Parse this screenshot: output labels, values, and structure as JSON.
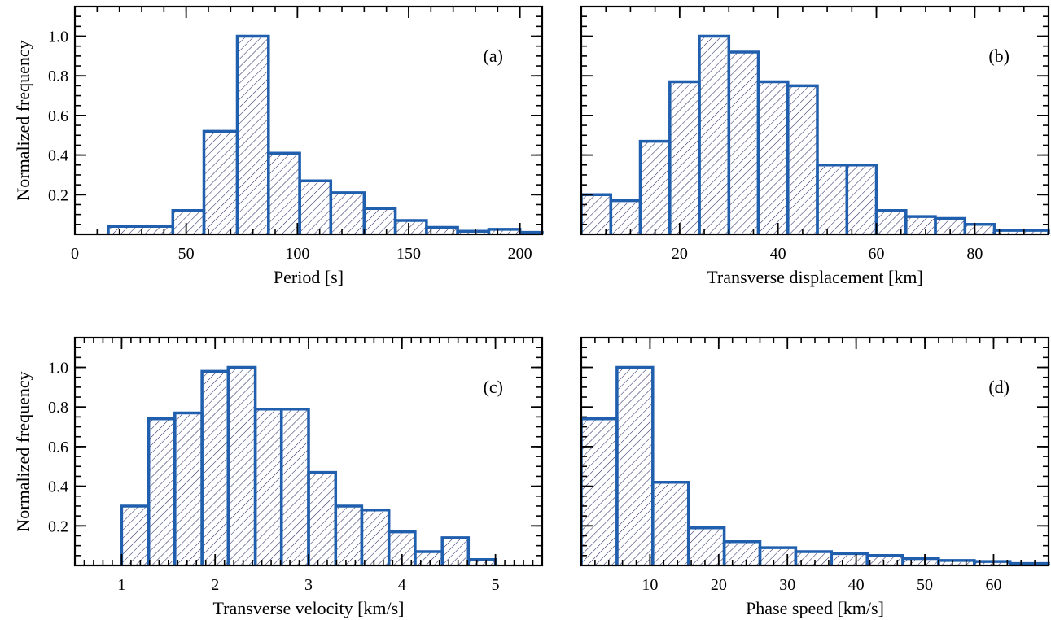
{
  "style": {
    "outline_color": "#1f5fad",
    "hatch_color": "#2a2a66",
    "axis_color": "#000000"
  },
  "chart_data": [
    {
      "type": "bar",
      "panel_label": "(a)",
      "xlabel": "Period [s]",
      "ylabel": "Normalized frequency",
      "xlim": [
        0,
        210
      ],
      "ylim": [
        0,
        1.15
      ],
      "xticks": [
        0,
        50,
        100,
        150,
        200
      ],
      "x_minor_step": 10,
      "yticks": [
        0.2,
        0.4,
        0.6,
        0.8,
        1.0
      ],
      "y_minor_step": 0.05,
      "bin_edges": [
        15,
        44,
        58,
        73,
        87,
        101,
        115,
        130,
        144,
        158,
        172,
        186,
        200,
        210
      ],
      "values": [
        0.04,
        0.12,
        0.52,
        1.0,
        0.41,
        0.27,
        0.21,
        0.13,
        0.07,
        0.035,
        0.015,
        0.025,
        0.01
      ]
    },
    {
      "type": "bar",
      "panel_label": "(b)",
      "xlabel": "Transverse displacement [km]",
      "ylabel": "",
      "xlim": [
        0,
        95
      ],
      "ylim": [
        0,
        1.15
      ],
      "xticks": [
        20,
        40,
        60,
        80
      ],
      "x_minor_step": 5,
      "yticks": [
        0.2,
        0.4,
        0.6,
        0.8,
        1.0
      ],
      "y_minor_step": 0.05,
      "bin_edges": [
        0,
        6,
        12,
        18,
        24,
        30,
        36,
        42,
        48,
        54,
        60,
        66,
        72,
        78,
        84,
        95
      ],
      "values": [
        0.2,
        0.17,
        0.47,
        0.77,
        1.0,
        0.92,
        0.77,
        0.75,
        0.35,
        0.35,
        0.12,
        0.09,
        0.08,
        0.05,
        0.02
      ]
    },
    {
      "type": "bar",
      "panel_label": "(c)",
      "xlabel": "Transverse velocity [km/s]",
      "ylabel": "Normalized frequency",
      "xlim": [
        0.5,
        5.5
      ],
      "ylim": [
        0,
        1.15
      ],
      "xticks": [
        1,
        2,
        3,
        4,
        5
      ],
      "x_minor_step": 0.1,
      "yticks": [
        0.2,
        0.4,
        0.6,
        0.8,
        1.0
      ],
      "y_minor_step": 0.05,
      "bin_edges": [
        1.0,
        1.29,
        1.57,
        1.86,
        2.14,
        2.43,
        2.71,
        3.0,
        3.29,
        3.57,
        3.86,
        4.14,
        4.43,
        4.71,
        5.0
      ],
      "values": [
        0.3,
        0.74,
        0.77,
        0.98,
        1.0,
        0.79,
        0.79,
        0.47,
        0.3,
        0.28,
        0.17,
        0.07,
        0.14,
        0.03
      ]
    },
    {
      "type": "bar",
      "panel_label": "(d)",
      "xlabel": "Phase speed [km/s]",
      "ylabel": "",
      "xlim": [
        0,
        68
      ],
      "ylim": [
        0,
        1.15
      ],
      "xticks": [
        10,
        20,
        30,
        40,
        50,
        60
      ],
      "x_minor_step": 2,
      "yticks": [
        0.2,
        0.4,
        0.6,
        0.8,
        1.0
      ],
      "y_minor_step": 0.05,
      "bin_edges": [
        0,
        5.2,
        10.4,
        15.6,
        20.8,
        26,
        31.2,
        36.4,
        41.6,
        46.8,
        52,
        57.2,
        62.4,
        68
      ],
      "values": [
        0.74,
        1.0,
        0.42,
        0.19,
        0.12,
        0.09,
        0.07,
        0.06,
        0.05,
        0.035,
        0.025,
        0.02,
        0.01
      ]
    }
  ]
}
